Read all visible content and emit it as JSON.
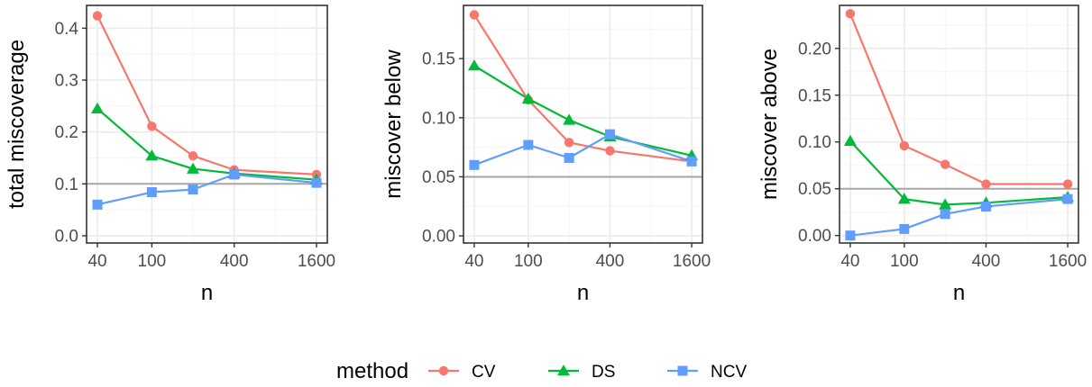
{
  "chart_data": [
    {
      "type": "line",
      "xlabel": "n",
      "ylabel": "total miscoverage",
      "x_scale": "log",
      "x_ticks": [
        40,
        100,
        400,
        1600
      ],
      "x_tick_labels": [
        "40",
        "100",
        "400",
        "1600"
      ],
      "x_minor": [
        200,
        800
      ],
      "xlim": [
        40,
        1600
      ],
      "y_ticks": [
        0.0,
        0.1,
        0.2,
        0.3,
        0.4
      ],
      "y_tick_labels": [
        "0.0",
        "0.1",
        "0.2",
        "0.3",
        "0.4"
      ],
      "ylim": [
        -0.014,
        0.444
      ],
      "reference_line": 0.1,
      "grid": true,
      "x": [
        40,
        100,
        200,
        400,
        1600
      ],
      "series": [
        {
          "name": "CV",
          "values": [
            0.424,
            0.211,
            0.154,
            0.127,
            0.118
          ]
        },
        {
          "name": "DS",
          "values": [
            0.245,
            0.154,
            0.129,
            0.12,
            0.108
          ]
        },
        {
          "name": "NCV",
          "values": [
            0.06,
            0.084,
            0.089,
            0.118,
            0.102
          ]
        }
      ]
    },
    {
      "type": "line",
      "xlabel": "n",
      "ylabel": "miscover below",
      "x_scale": "log",
      "x_ticks": [
        40,
        100,
        400,
        1600
      ],
      "x_tick_labels": [
        "40",
        "100",
        "400",
        "1600"
      ],
      "x_minor": [
        200,
        800
      ],
      "xlim": [
        40,
        1600
      ],
      "y_ticks": [
        0.0,
        0.05,
        0.1,
        0.15
      ],
      "y_tick_labels": [
        "0.00",
        "0.05",
        "0.10",
        "0.15"
      ],
      "ylim": [
        -0.006,
        0.195
      ],
      "reference_line": 0.05,
      "grid": true,
      "x": [
        40,
        100,
        200,
        400,
        1600
      ],
      "series": [
        {
          "name": "CV",
          "values": [
            0.187,
            0.115,
            0.079,
            0.072,
            0.063
          ]
        },
        {
          "name": "DS",
          "values": [
            0.144,
            0.116,
            0.098,
            0.084,
            0.068
          ]
        },
        {
          "name": "NCV",
          "values": [
            0.06,
            0.077,
            0.066,
            0.086,
            0.063
          ]
        }
      ]
    },
    {
      "type": "line",
      "xlabel": "n",
      "ylabel": "miscover above",
      "x_scale": "log",
      "x_ticks": [
        40,
        100,
        400,
        1600
      ],
      "x_tick_labels": [
        "40",
        "100",
        "400",
        "1600"
      ],
      "x_minor": [
        200,
        800
      ],
      "xlim": [
        40,
        1600
      ],
      "y_ticks": [
        0.0,
        0.05,
        0.1,
        0.15,
        0.2
      ],
      "y_tick_labels": [
        "0.00",
        "0.05",
        "0.10",
        "0.15",
        "0.20"
      ],
      "ylim": [
        -0.008,
        0.246
      ],
      "reference_line": 0.05,
      "grid": true,
      "x": [
        40,
        100,
        200,
        400,
        1600
      ],
      "series": [
        {
          "name": "CV",
          "values": [
            0.237,
            0.096,
            0.076,
            0.055,
            0.055
          ]
        },
        {
          "name": "DS",
          "values": [
            0.101,
            0.039,
            0.033,
            0.035,
            0.041
          ]
        },
        {
          "name": "NCV",
          "values": [
            0.0,
            0.007,
            0.023,
            0.031,
            0.039
          ]
        }
      ]
    }
  ],
  "legend": {
    "title": "method",
    "position": "bottom",
    "entries": [
      {
        "label": "CV",
        "color": "#F8766D",
        "shape": "circle"
      },
      {
        "label": "DS",
        "color": "#00BA38",
        "shape": "triangle"
      },
      {
        "label": "NCV",
        "color": "#619CFF",
        "shape": "square"
      }
    ]
  },
  "colors": {
    "CV": "#F8766D",
    "DS": "#00BA38",
    "NCV": "#619CFF",
    "reference_line": "#A6A6A6",
    "grid_major": "#EBEBEB",
    "grid_minor": "#F5F5F5",
    "panel_border": "#333333"
  }
}
